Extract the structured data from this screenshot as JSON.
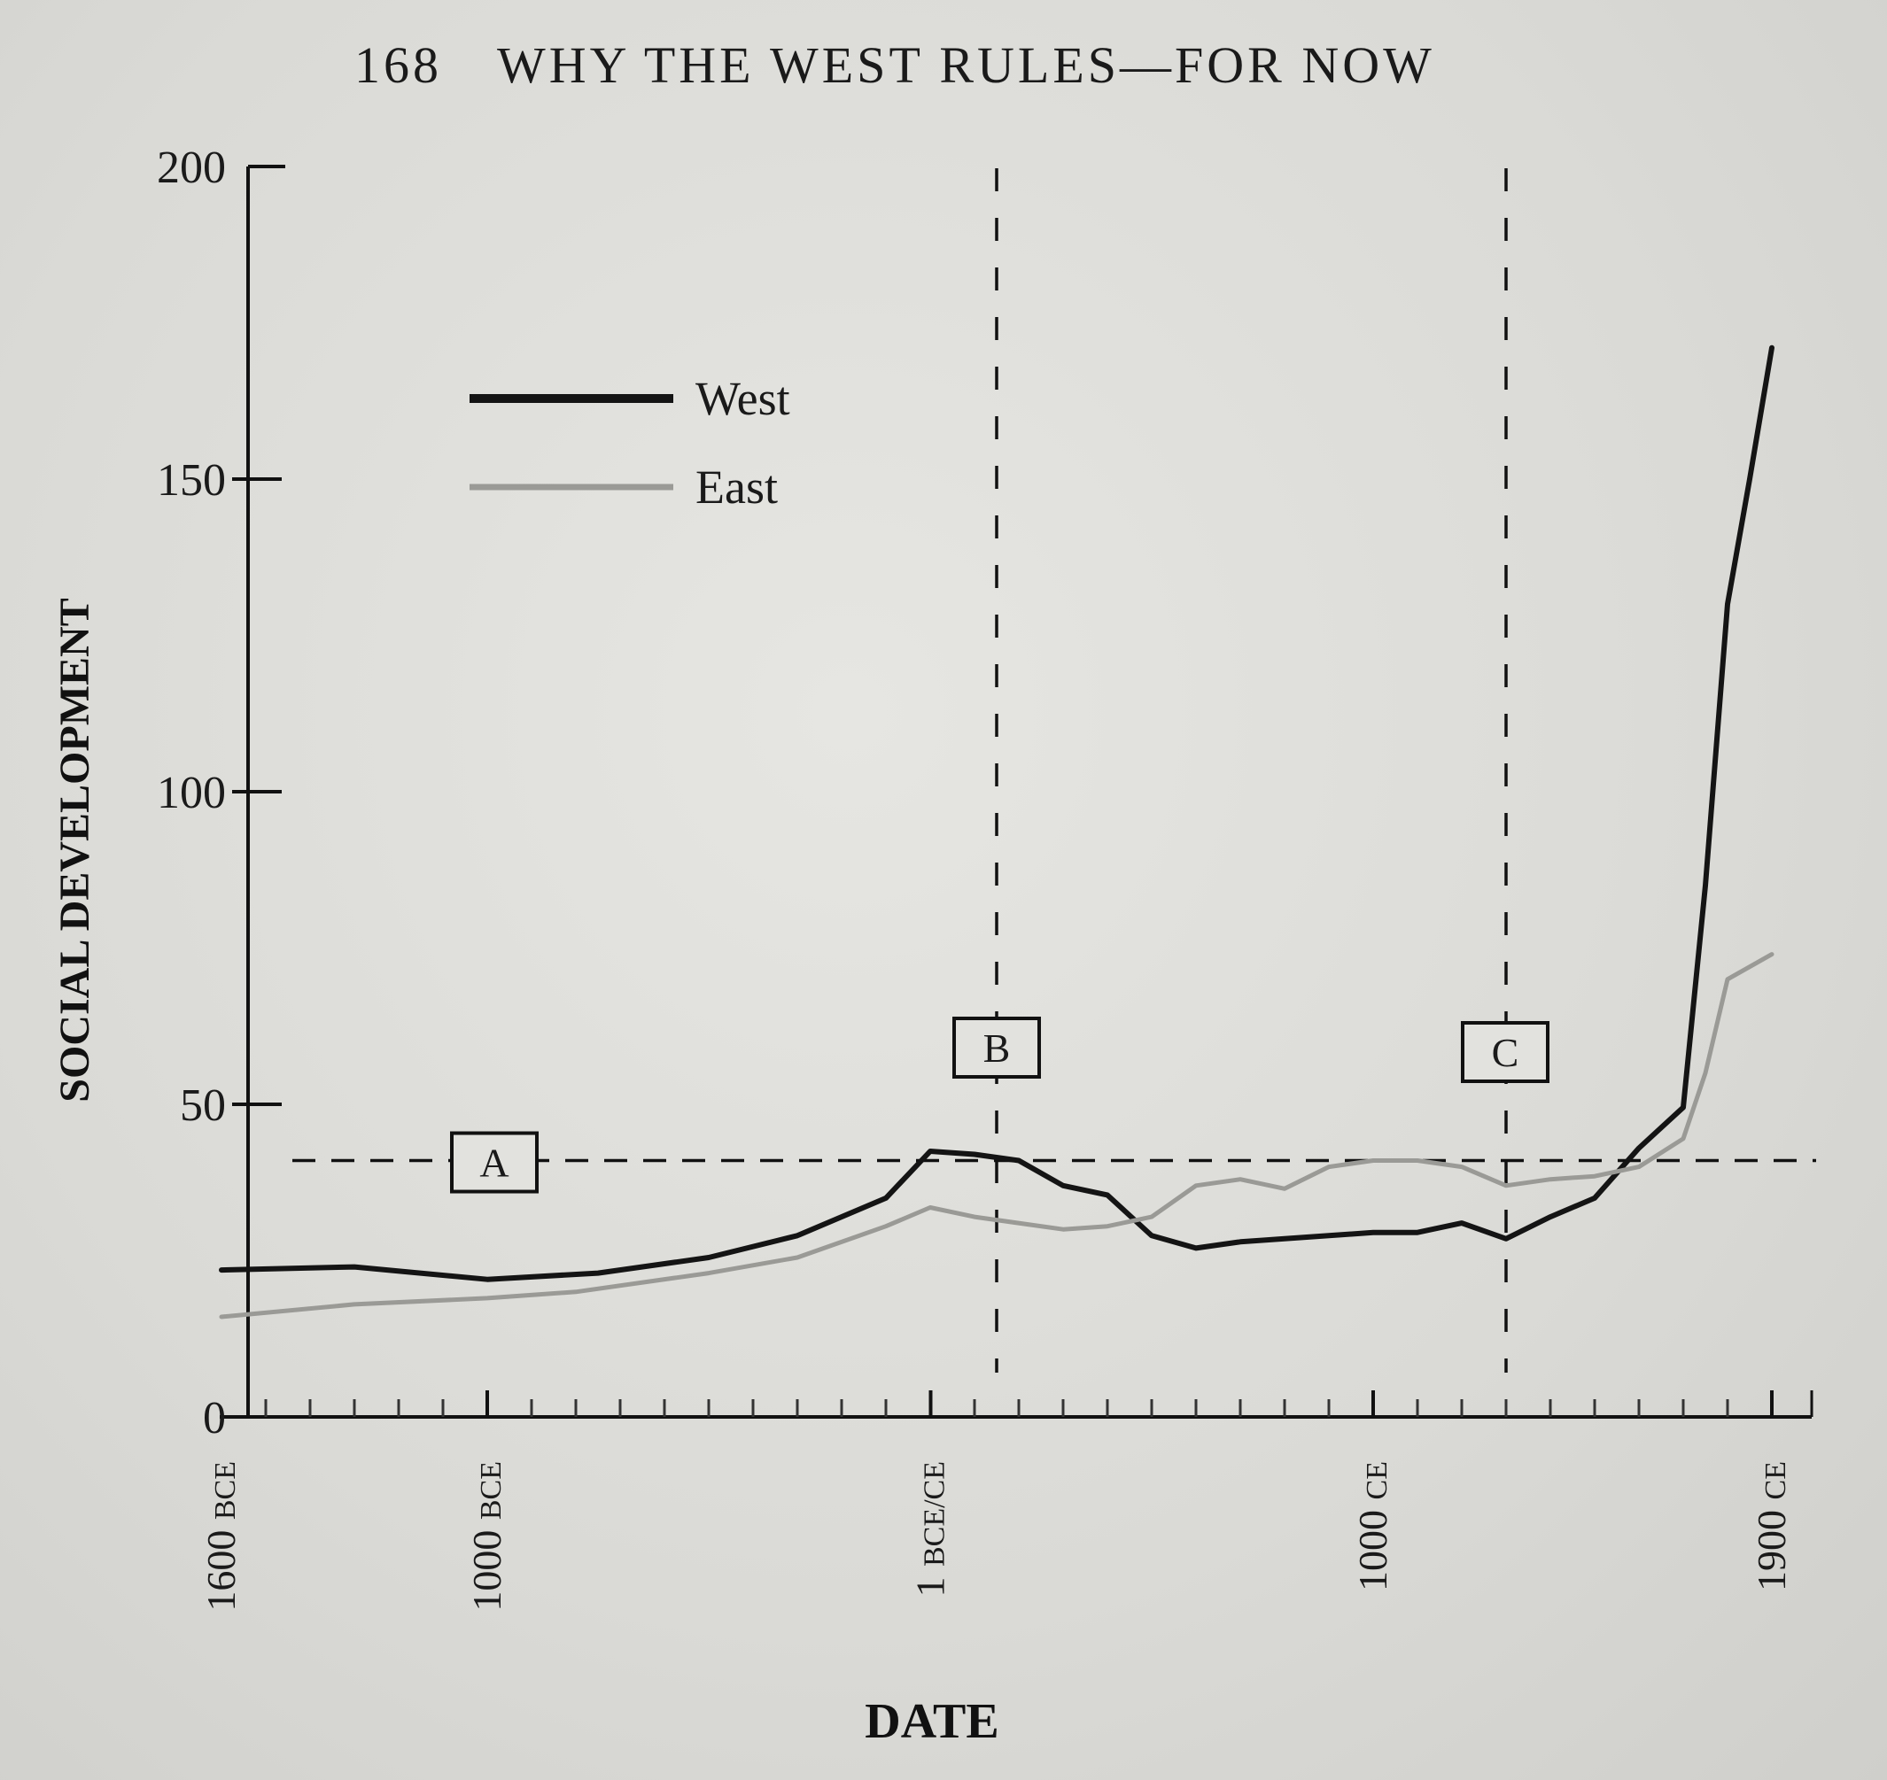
{
  "header": {
    "page_number": "168",
    "running_title": "WHY THE WEST RULES—FOR NOW"
  },
  "chart_data": {
    "type": "line",
    "xlabel": "DATE",
    "ylabel": "SOCIAL DEVELOPMENT",
    "ylim": [
      0,
      200
    ],
    "xlim": [
      -1600,
      1900
    ],
    "y_ticks": [
      "0",
      "50",
      "100",
      "150",
      "200"
    ],
    "x_tick_labels": [
      {
        "num": "1600",
        "era": "BCE"
      },
      {
        "num": "1000",
        "era": "BCE"
      },
      {
        "num": "1",
        "era": "BCE/CE"
      },
      {
        "num": "1000",
        "era": "CE"
      },
      {
        "num": "1900",
        "era": "CE"
      }
    ],
    "legend": {
      "position": "top-left"
    },
    "series": [
      {
        "name": "West",
        "color": "#141414",
        "x": [
          -1600,
          -1300,
          -1000,
          -750,
          -500,
          -300,
          -100,
          0,
          100,
          200,
          300,
          400,
          500,
          600,
          700,
          800,
          900,
          1000,
          1100,
          1200,
          1300,
          1400,
          1500,
          1600,
          1700,
          1750,
          1800,
          1850,
          1900
        ],
        "y": [
          23.5,
          24,
          22,
          23,
          25.5,
          29,
          35,
          42.5,
          42,
          41,
          37,
          35.5,
          29,
          27,
          28,
          28.5,
          29,
          29.5,
          29.5,
          31,
          28.5,
          32,
          35,
          43,
          49.5,
          85,
          130,
          150,
          171
        ]
      },
      {
        "name": "East",
        "color": "#9a9a96",
        "x": [
          -1600,
          -1300,
          -1000,
          -800,
          -500,
          -300,
          -100,
          0,
          100,
          300,
          400,
          500,
          600,
          700,
          800,
          900,
          1000,
          1100,
          1200,
          1300,
          1400,
          1500,
          1600,
          1700,
          1750,
          1800,
          1850,
          1900
        ],
        "y": [
          16,
          18,
          19,
          20,
          23,
          25.5,
          30.5,
          33.5,
          32,
          30,
          30.5,
          32,
          37,
          38,
          36.5,
          40,
          41,
          41,
          40,
          37,
          38,
          38.5,
          40,
          44.5,
          55,
          70,
          72,
          74
        ]
      }
    ],
    "reference_lines": [
      {
        "label": "A",
        "orientation": "horizontal",
        "y": 41
      },
      {
        "label": "B",
        "orientation": "vertical",
        "x": 150
      },
      {
        "label": "C",
        "orientation": "vertical",
        "x": 1300
      }
    ]
  }
}
